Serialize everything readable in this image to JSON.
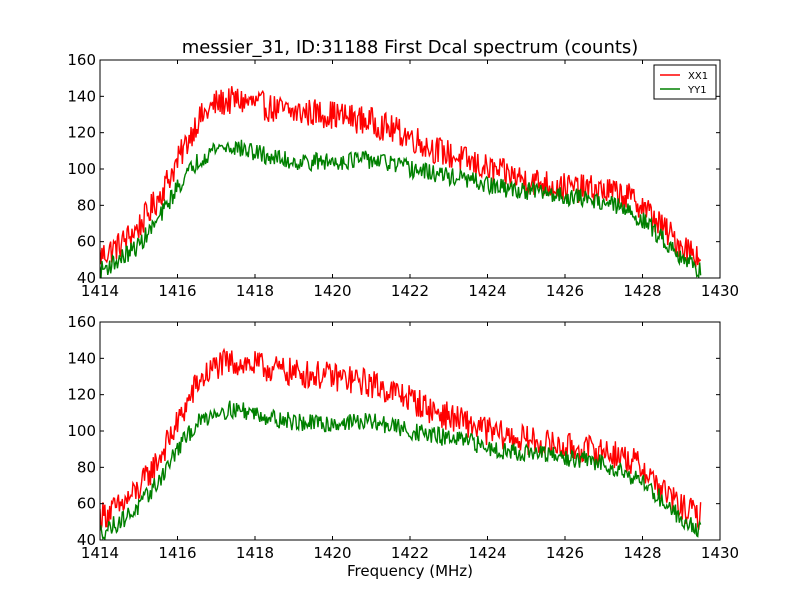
{
  "chart_data": [
    {
      "type": "line",
      "title": "messier_31, ID:31188 First Dcal spectrum (counts)",
      "xlabel": "",
      "ylabel": "",
      "xlim": [
        1414,
        1430
      ],
      "ylim": [
        40,
        160
      ],
      "xticks": [
        "1414",
        "1416",
        "1418",
        "1420",
        "1422",
        "1424",
        "1426",
        "1428",
        "1430"
      ],
      "yticks": [
        "40",
        "60",
        "80",
        "100",
        "120",
        "140",
        "160"
      ],
      "legend": "top-right",
      "grid": false,
      "series": [
        {
          "name": "XX1",
          "color": "#ff0000",
          "x": [
            1414.0,
            1414.5,
            1415.0,
            1415.5,
            1416.0,
            1416.5,
            1417.0,
            1417.5,
            1418.0,
            1418.5,
            1419.0,
            1419.5,
            1420.0,
            1420.5,
            1421.0,
            1421.5,
            1422.0,
            1422.5,
            1423.0,
            1423.5,
            1424.0,
            1424.5,
            1425.0,
            1425.5,
            1426.0,
            1426.5,
            1427.0,
            1427.5,
            1428.0,
            1428.5,
            1429.0,
            1429.5
          ],
          "y": [
            52,
            58,
            68,
            84,
            104,
            126,
            136,
            138,
            136,
            133,
            131,
            131,
            130,
            128,
            126,
            122,
            118,
            112,
            108,
            104,
            100,
            97,
            94,
            92,
            90,
            89,
            88,
            86,
            80,
            68,
            58,
            52
          ],
          "noise": 8
        },
        {
          "name": "YY1",
          "color": "#008000",
          "x": [
            1414.0,
            1414.5,
            1415.0,
            1415.5,
            1416.0,
            1416.5,
            1417.0,
            1417.5,
            1418.0,
            1418.5,
            1419.0,
            1419.5,
            1420.0,
            1420.5,
            1421.0,
            1421.5,
            1422.0,
            1422.5,
            1423.0,
            1423.5,
            1424.0,
            1424.5,
            1425.0,
            1425.5,
            1426.0,
            1426.5,
            1427.0,
            1427.5,
            1428.0,
            1428.5,
            1429.0,
            1429.5
          ],
          "y": [
            44,
            50,
            58,
            72,
            90,
            104,
            112,
            112,
            109,
            106,
            104,
            104,
            104,
            105,
            105,
            103,
            100,
            98,
            96,
            94,
            91,
            89,
            88,
            87,
            85,
            84,
            82,
            78,
            72,
            62,
            52,
            44
          ],
          "noise": 5
        }
      ]
    },
    {
      "type": "line",
      "title": "",
      "xlabel": "Frequency (MHz)",
      "ylabel": "",
      "xlim": [
        1414,
        1430
      ],
      "ylim": [
        40,
        160
      ],
      "xticks": [
        "1414",
        "1416",
        "1418",
        "1420",
        "1422",
        "1424",
        "1426",
        "1428",
        "1430"
      ],
      "yticks": [
        "40",
        "60",
        "80",
        "100",
        "120",
        "140",
        "160"
      ],
      "legend": "none",
      "grid": false,
      "series": [
        {
          "color": "#ff0000",
          "x": [
            1414.0,
            1414.5,
            1415.0,
            1415.5,
            1416.0,
            1416.5,
            1417.0,
            1417.5,
            1418.0,
            1418.5,
            1419.0,
            1419.5,
            1420.0,
            1420.5,
            1421.0,
            1421.5,
            1422.0,
            1422.5,
            1423.0,
            1423.5,
            1424.0,
            1424.5,
            1425.0,
            1425.5,
            1426.0,
            1426.5,
            1427.0,
            1427.5,
            1428.0,
            1428.5,
            1429.0,
            1429.5
          ],
          "y": [
            53,
            58,
            68,
            84,
            104,
            126,
            136,
            138,
            136,
            134,
            132,
            131,
            130,
            128,
            126,
            122,
            118,
            112,
            108,
            104,
            100,
            97,
            95,
            93,
            91,
            90,
            89,
            86,
            80,
            68,
            58,
            53
          ],
          "noise": 8
        },
        {
          "color": "#008000",
          "x": [
            1414.0,
            1414.5,
            1415.0,
            1415.5,
            1416.0,
            1416.5,
            1417.0,
            1417.5,
            1418.0,
            1418.5,
            1419.0,
            1419.5,
            1420.0,
            1420.5,
            1421.0,
            1421.5,
            1422.0,
            1422.5,
            1423.0,
            1423.5,
            1424.0,
            1424.5,
            1425.0,
            1425.5,
            1426.0,
            1426.5,
            1427.0,
            1427.5,
            1428.0,
            1428.5,
            1429.0,
            1429.5
          ],
          "y": [
            44,
            50,
            58,
            72,
            90,
            104,
            111,
            112,
            110,
            107,
            105,
            104,
            104,
            105,
            105,
            103,
            100,
            98,
            96,
            94,
            91,
            89,
            88,
            87,
            85,
            84,
            82,
            78,
            72,
            62,
            52,
            45
          ],
          "noise": 5
        }
      ]
    }
  ]
}
